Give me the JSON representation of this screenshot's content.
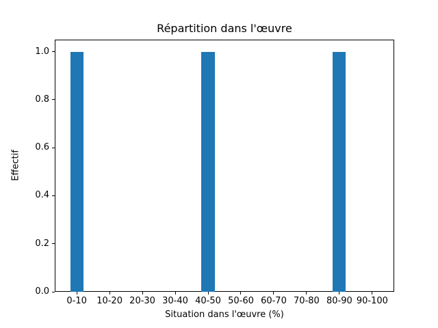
{
  "chart_data": {
    "type": "bar",
    "title": "Répartition dans l'œuvre",
    "xlabel": "Situation dans l'œuvre (%)",
    "ylabel": "Effectif",
    "categories": [
      "0-10",
      "10-20",
      "20-30",
      "30-40",
      "40-50",
      "50-60",
      "60-70",
      "70-80",
      "80-90",
      "90-100"
    ],
    "values": [
      1,
      0,
      0,
      0,
      1,
      0,
      0,
      0,
      1,
      0
    ],
    "ytick_labels": [
      "0.0",
      "0.2",
      "0.4",
      "0.6",
      "0.8",
      "1.0"
    ],
    "ytick_values": [
      0.0,
      0.2,
      0.4,
      0.6,
      0.8,
      1.0
    ],
    "ylim": [
      0,
      1.05
    ],
    "bar_color": "#1f77b4",
    "grid": false,
    "legend_position": "none"
  }
}
